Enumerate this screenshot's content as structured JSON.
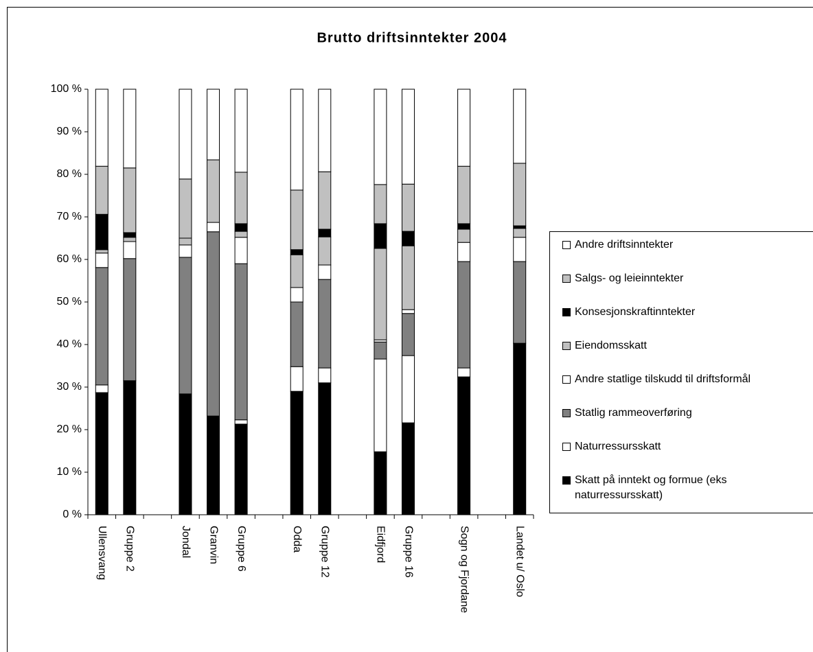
{
  "chart_data": {
    "type": "stacked_bar",
    "title": "Brutto driftsinntekter 2004",
    "categories": [
      "Ullensvang",
      "Gruppe 2",
      null,
      "Jondal",
      "Granvin",
      "Gruppe 6",
      null,
      "Odda",
      "Gruppe 12",
      null,
      "Eidfjord",
      "Gruppe 16",
      null,
      "Sogn og Fjordane",
      null,
      "Landet u/ Oslo"
    ],
    "series": [
      {
        "name": "Skatt på inntekt og formue (eks naturressursskatt)",
        "color": "#000000",
        "values": [
          28.7,
          31.5,
          null,
          28.4,
          23.2,
          21.3,
          null,
          29.0,
          31.0,
          null,
          14.8,
          21.6,
          null,
          32.4,
          null,
          40.3
        ]
      },
      {
        "name": "Naturressursskatt",
        "color": "#ffffff",
        "values": [
          1.8,
          0,
          null,
          0,
          0,
          1.0,
          null,
          5.8,
          3.5,
          null,
          21.8,
          15.8,
          null,
          2.1,
          null,
          0
        ]
      },
      {
        "name": "Statlig rammeoverføring",
        "color": "#808080",
        "values": [
          27.6,
          28.7,
          null,
          32.1,
          43.3,
          36.7,
          null,
          15.2,
          20.8,
          null,
          4.0,
          9.9,
          null,
          25.0,
          null,
          19.2
        ]
      },
      {
        "name": "Andre statlige tilskudd til driftsformål",
        "color": "#ffffff",
        "values": [
          3.4,
          4.0,
          null,
          2.9,
          2.2,
          6.2,
          null,
          3.4,
          3.4,
          null,
          0.5,
          0.9,
          null,
          4.5,
          null,
          5.7
        ]
      },
      {
        "name": "Eiendomsskatt",
        "color": "#c0c0c0",
        "values": [
          0.8,
          1.0,
          null,
          1.6,
          0,
          1.4,
          null,
          7.7,
          6.6,
          null,
          21.5,
          15.0,
          null,
          3.1,
          null,
          2.1
        ]
      },
      {
        "name": "Konsesjonskraftinntekter",
        "color": "#000000",
        "values": [
          8.3,
          1.1,
          null,
          0,
          0,
          1.8,
          null,
          1.2,
          1.8,
          null,
          5.8,
          3.4,
          null,
          1.3,
          null,
          0.6
        ]
      },
      {
        "name": "Salgs- og leieinntekter",
        "color": "#c0c0c0",
        "values": [
          11.3,
          15.2,
          null,
          13.9,
          14.7,
          12.1,
          null,
          14.0,
          13.5,
          null,
          9.2,
          11.1,
          null,
          13.5,
          null,
          14.7
        ]
      },
      {
        "name": "Andre driftsinntekter",
        "color": "#ffffff",
        "values": [
          18.1,
          18.5,
          null,
          21.1,
          16.6,
          19.5,
          null,
          23.7,
          19.4,
          null,
          22.4,
          22.3,
          null,
          18.1,
          null,
          17.4
        ]
      }
    ],
    "ylim": [
      0,
      100
    ],
    "yticks": [
      {
        "value": 0,
        "label": "0 %"
      },
      {
        "value": 10,
        "label": "10 %"
      },
      {
        "value": 20,
        "label": "20 %"
      },
      {
        "value": 30,
        "label": "30 %"
      },
      {
        "value": 40,
        "label": "40 %"
      },
      {
        "value": 50,
        "label": "50 %"
      },
      {
        "value": 60,
        "label": "60 %"
      },
      {
        "value": 70,
        "label": "70 %"
      },
      {
        "value": 80,
        "label": "80 %"
      },
      {
        "value": 90,
        "label": "90 %"
      },
      {
        "value": 100,
        "label": "100 %"
      }
    ],
    "legend": "right"
  }
}
